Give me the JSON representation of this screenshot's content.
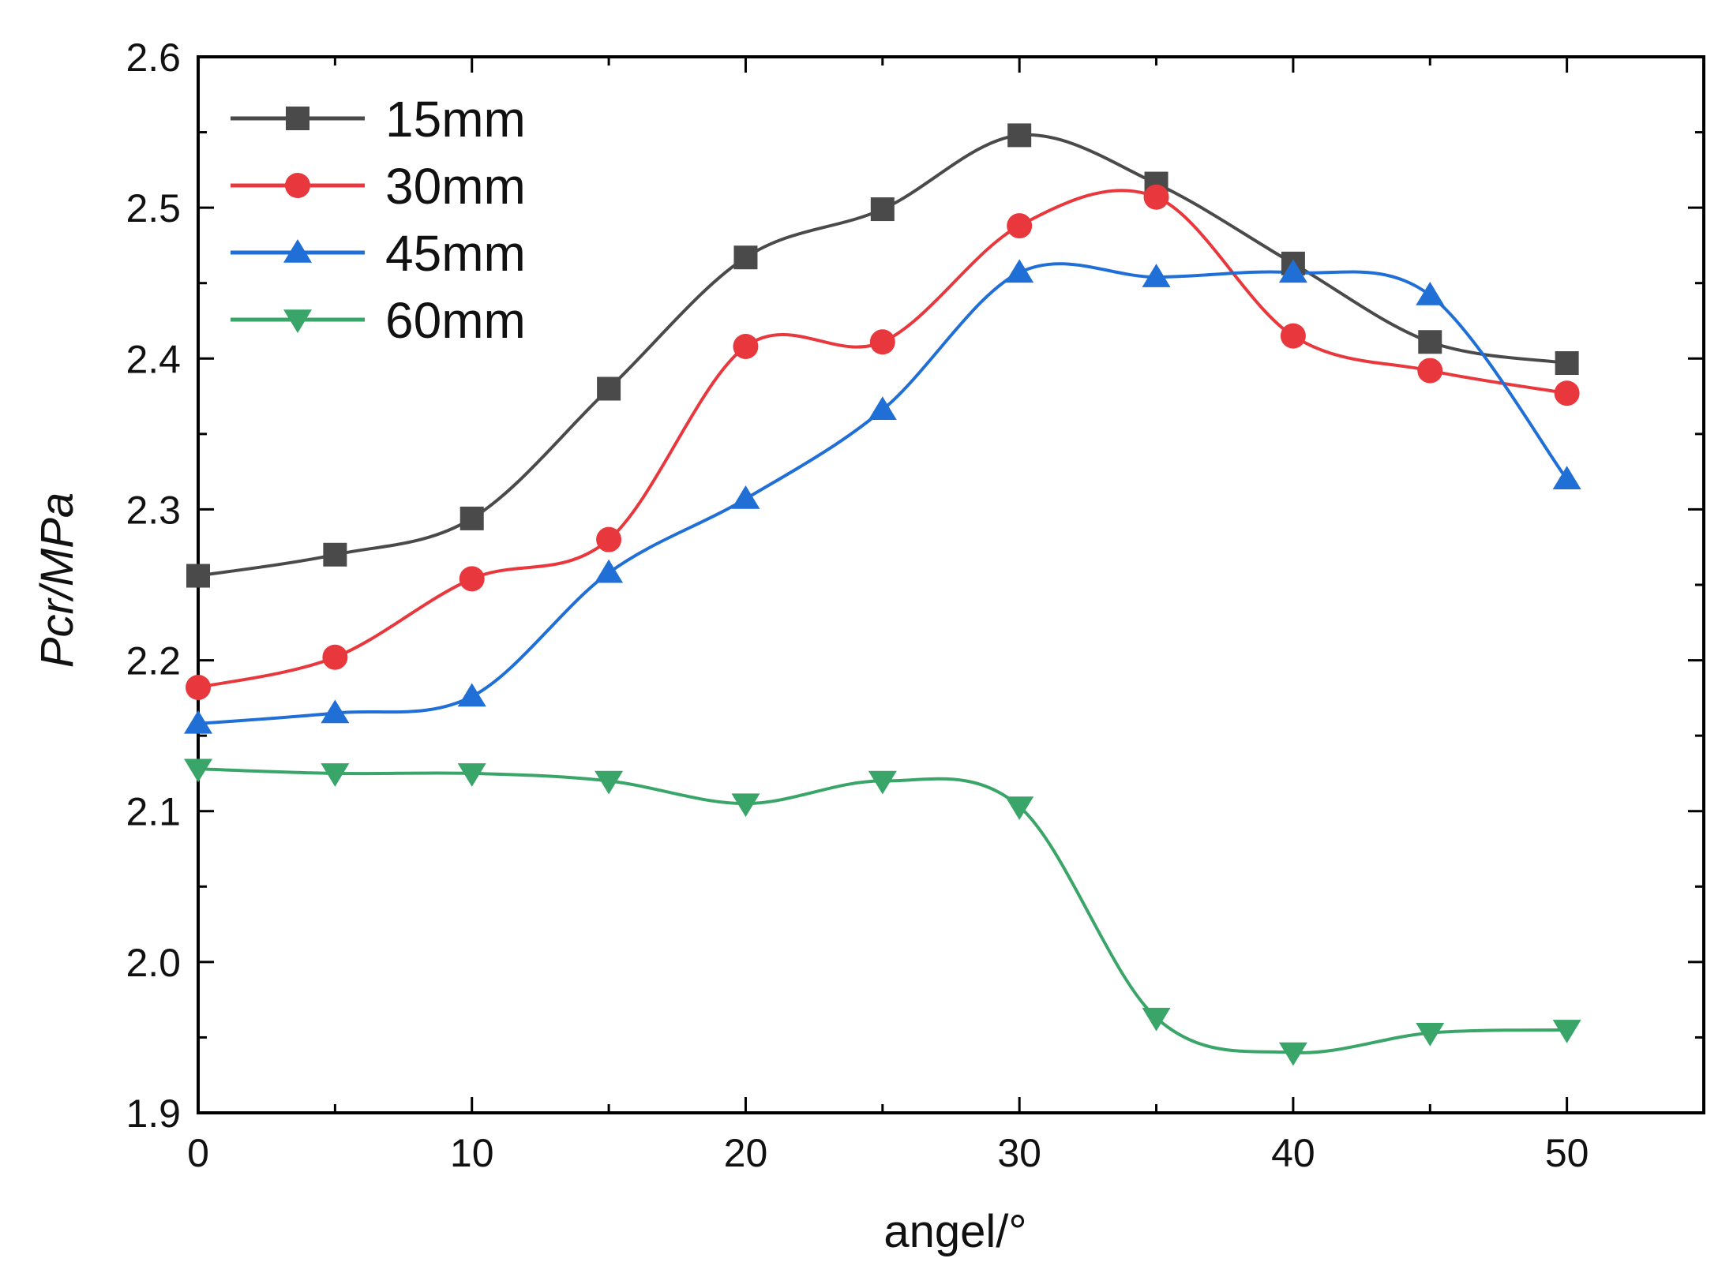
{
  "chart_data": {
    "type": "line",
    "title": "",
    "xlabel": "angel/°",
    "ylabel": "Pcr/MPa",
    "xlim": [
      0,
      55
    ],
    "ylim": [
      1.9,
      2.6
    ],
    "xticks": [
      0,
      10,
      20,
      30,
      40,
      50
    ],
    "xtick_labels": [
      "0",
      "10",
      "20",
      "30",
      "40",
      "50"
    ],
    "yticks": [
      1.9,
      2.0,
      2.1,
      2.2,
      2.3,
      2.4,
      2.5,
      2.6
    ],
    "ytick_labels": [
      "1.9",
      "2.0",
      "2.1",
      "2.2",
      "2.3",
      "2.4",
      "2.5",
      "2.6"
    ],
    "grid": false,
    "legend_position": "top-left",
    "x": [
      0,
      5,
      10,
      15,
      20,
      25,
      30,
      35,
      40,
      45,
      50
    ],
    "series": [
      {
        "name": "15mm",
        "color": "#4a4a4a",
        "marker": "square",
        "values": [
          2.256,
          2.27,
          2.294,
          2.38,
          2.467,
          2.499,
          2.548,
          2.516,
          2.463,
          2.411,
          2.397
        ]
      },
      {
        "name": "30mm",
        "color": "#e8383d",
        "marker": "circle",
        "values": [
          2.182,
          2.202,
          2.254,
          2.28,
          2.408,
          2.411,
          2.488,
          2.507,
          2.415,
          2.392,
          2.377
        ]
      },
      {
        "name": "45mm",
        "color": "#1f6fd6",
        "marker": "triangle-up",
        "values": [
          2.158,
          2.165,
          2.176,
          2.258,
          2.307,
          2.366,
          2.457,
          2.454,
          2.457,
          2.442,
          2.32
        ]
      },
      {
        "name": "60mm",
        "color": "#3aa568",
        "marker": "triangle-down",
        "values": [
          2.128,
          2.125,
          2.125,
          2.12,
          2.105,
          2.12,
          2.103,
          1.963,
          1.94,
          1.953,
          1.955
        ]
      }
    ]
  }
}
